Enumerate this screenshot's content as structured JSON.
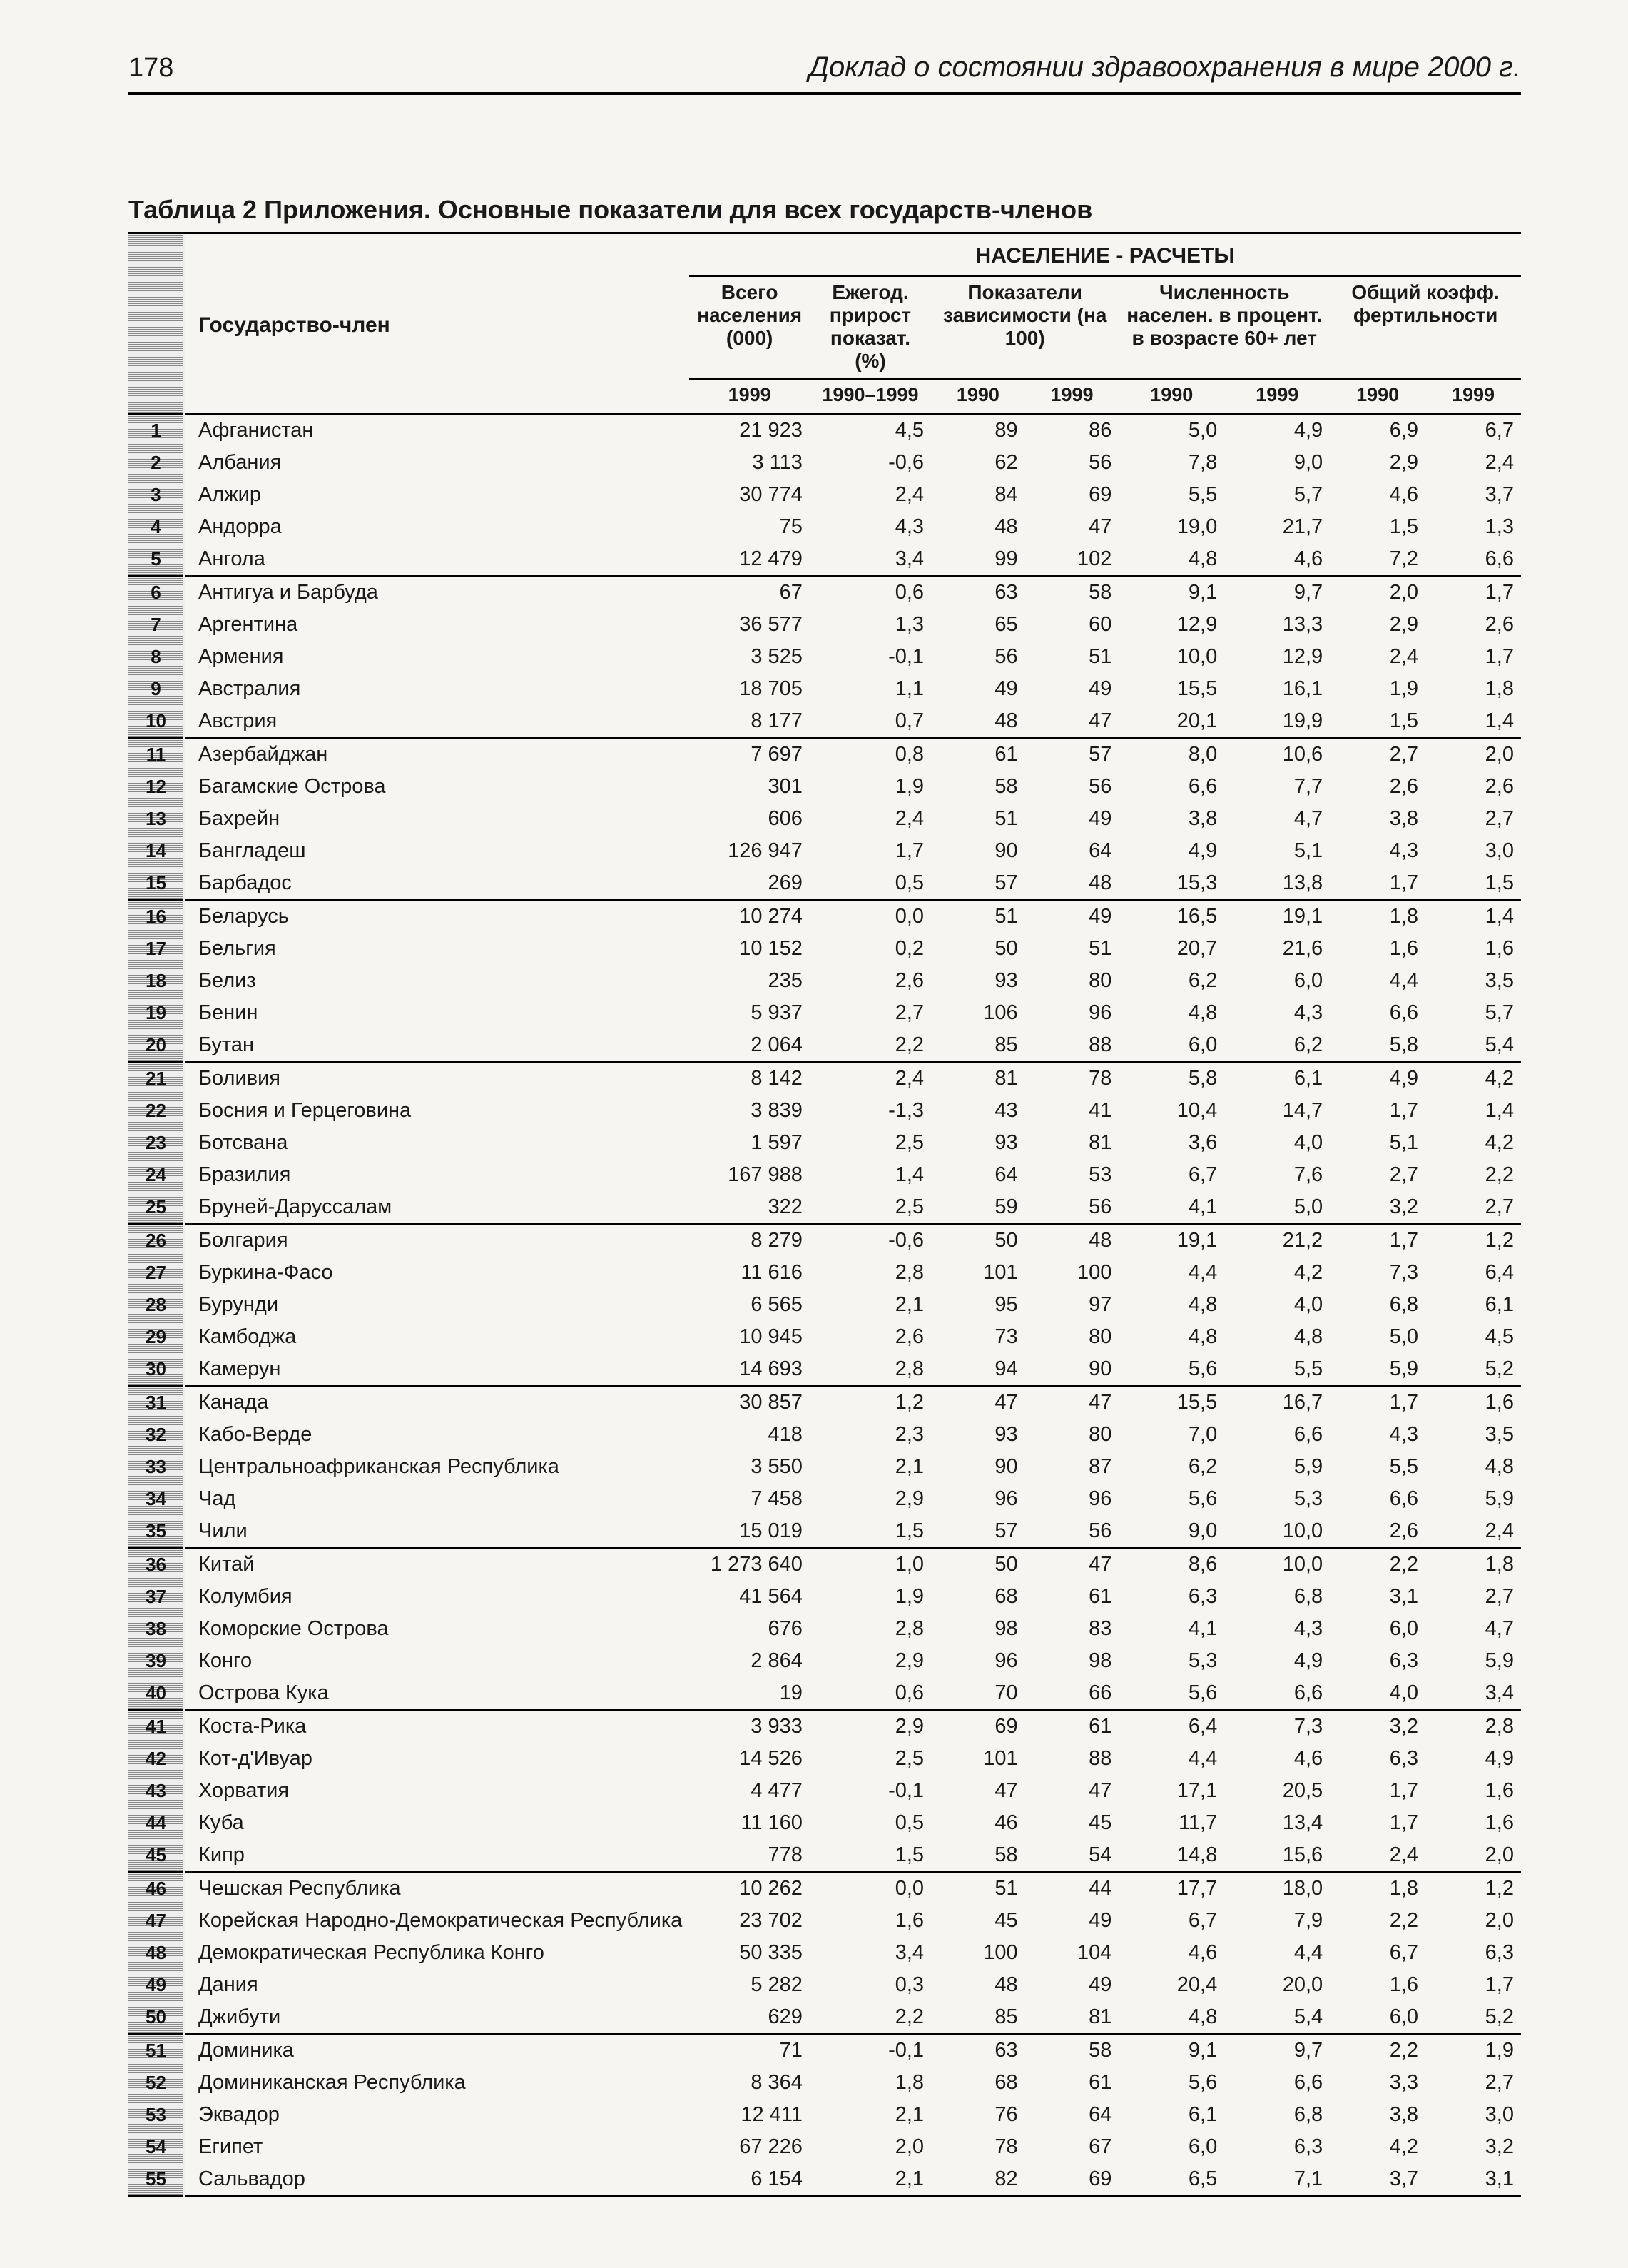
{
  "page_number": "178",
  "document_title": "Доклад о состоянии здравоохранения в мире 2000 г.",
  "table_title": "Таблица 2 Приложения.  Основные показатели для всех государств-членов",
  "colors": {
    "text": "#1a1a1a",
    "background": "#f7f5f1",
    "rule": "#000000",
    "rownum_stripe_dark": "#888888",
    "rownum_stripe_light": "#eeeeee"
  },
  "typography": {
    "base_family": "Helvetica Neue, Arial, sans-serif",
    "header_fontsize_pt": 30,
    "body_fontsize_pt": 29,
    "title_fontsize_pt": 36,
    "running_fontsize_pt": 40
  },
  "header": {
    "super": "НАСЕЛЕНИЕ - РАСЧЕТЫ",
    "state": "Государство-член",
    "pop_total": "Всего населения (000)",
    "growth": "Ежегод. прирост показат. (%)",
    "dep_ratio": "Показатели зависимости (на 100)",
    "pct60": "Численность населен. в процент. в возрасте 60+ лет",
    "tfr": "Общий коэфф. фертильности",
    "y_pop": "1999",
    "y_growth": "1990–1999",
    "y1990": "1990",
    "y1999": "1999"
  },
  "block_size": 5,
  "rows": [
    {
      "n": "1",
      "country": "Афганистан",
      "pop": "21 923",
      "grow": "4,5",
      "d90": "89",
      "d99": "86",
      "p60a": "5,0",
      "p60b": "4,9",
      "t90": "6,9",
      "t99": "6,7"
    },
    {
      "n": "2",
      "country": "Албания",
      "pop": "3 113",
      "grow": "-0,6",
      "d90": "62",
      "d99": "56",
      "p60a": "7,8",
      "p60b": "9,0",
      "t90": "2,9",
      "t99": "2,4"
    },
    {
      "n": "3",
      "country": "Алжир",
      "pop": "30 774",
      "grow": "2,4",
      "d90": "84",
      "d99": "69",
      "p60a": "5,5",
      "p60b": "5,7",
      "t90": "4,6",
      "t99": "3,7"
    },
    {
      "n": "4",
      "country": "Андорра",
      "pop": "75",
      "grow": "4,3",
      "d90": "48",
      "d99": "47",
      "p60a": "19,0",
      "p60b": "21,7",
      "t90": "1,5",
      "t99": "1,3"
    },
    {
      "n": "5",
      "country": "Ангола",
      "pop": "12 479",
      "grow": "3,4",
      "d90": "99",
      "d99": "102",
      "p60a": "4,8",
      "p60b": "4,6",
      "t90": "7,2",
      "t99": "6,6"
    },
    {
      "n": "6",
      "country": "Антигуа и Барбуда",
      "pop": "67",
      "grow": "0,6",
      "d90": "63",
      "d99": "58",
      "p60a": "9,1",
      "p60b": "9,7",
      "t90": "2,0",
      "t99": "1,7"
    },
    {
      "n": "7",
      "country": "Аргентина",
      "pop": "36 577",
      "grow": "1,3",
      "d90": "65",
      "d99": "60",
      "p60a": "12,9",
      "p60b": "13,3",
      "t90": "2,9",
      "t99": "2,6"
    },
    {
      "n": "8",
      "country": "Армения",
      "pop": "3 525",
      "grow": "-0,1",
      "d90": "56",
      "d99": "51",
      "p60a": "10,0",
      "p60b": "12,9",
      "t90": "2,4",
      "t99": "1,7"
    },
    {
      "n": "9",
      "country": "Австралия",
      "pop": "18 705",
      "grow": "1,1",
      "d90": "49",
      "d99": "49",
      "p60a": "15,5",
      "p60b": "16,1",
      "t90": "1,9",
      "t99": "1,8"
    },
    {
      "n": "10",
      "country": "Австрия",
      "pop": "8 177",
      "grow": "0,7",
      "d90": "48",
      "d99": "47",
      "p60a": "20,1",
      "p60b": "19,9",
      "t90": "1,5",
      "t99": "1,4"
    },
    {
      "n": "11",
      "country": "Азербайджан",
      "pop": "7 697",
      "grow": "0,8",
      "d90": "61",
      "d99": "57",
      "p60a": "8,0",
      "p60b": "10,6",
      "t90": "2,7",
      "t99": "2,0"
    },
    {
      "n": "12",
      "country": "Багамские Острова",
      "pop": "301",
      "grow": "1,9",
      "d90": "58",
      "d99": "56",
      "p60a": "6,6",
      "p60b": "7,7",
      "t90": "2,6",
      "t99": "2,6"
    },
    {
      "n": "13",
      "country": "Бахрейн",
      "pop": "606",
      "grow": "2,4",
      "d90": "51",
      "d99": "49",
      "p60a": "3,8",
      "p60b": "4,7",
      "t90": "3,8",
      "t99": "2,7"
    },
    {
      "n": "14",
      "country": "Бангладеш",
      "pop": "126 947",
      "grow": "1,7",
      "d90": "90",
      "d99": "64",
      "p60a": "4,9",
      "p60b": "5,1",
      "t90": "4,3",
      "t99": "3,0"
    },
    {
      "n": "15",
      "country": "Барбадос",
      "pop": "269",
      "grow": "0,5",
      "d90": "57",
      "d99": "48",
      "p60a": "15,3",
      "p60b": "13,8",
      "t90": "1,7",
      "t99": "1,5"
    },
    {
      "n": "16",
      "country": "Беларусь",
      "pop": "10 274",
      "grow": "0,0",
      "d90": "51",
      "d99": "49",
      "p60a": "16,5",
      "p60b": "19,1",
      "t90": "1,8",
      "t99": "1,4"
    },
    {
      "n": "17",
      "country": "Бельгия",
      "pop": "10 152",
      "grow": "0,2",
      "d90": "50",
      "d99": "51",
      "p60a": "20,7",
      "p60b": "21,6",
      "t90": "1,6",
      "t99": "1,6"
    },
    {
      "n": "18",
      "country": "Белиз",
      "pop": "235",
      "grow": "2,6",
      "d90": "93",
      "d99": "80",
      "p60a": "6,2",
      "p60b": "6,0",
      "t90": "4,4",
      "t99": "3,5"
    },
    {
      "n": "19",
      "country": "Бенин",
      "pop": "5 937",
      "grow": "2,7",
      "d90": "106",
      "d99": "96",
      "p60a": "4,8",
      "p60b": "4,3",
      "t90": "6,6",
      "t99": "5,7"
    },
    {
      "n": "20",
      "country": "Бутан",
      "pop": "2 064",
      "grow": "2,2",
      "d90": "85",
      "d99": "88",
      "p60a": "6,0",
      "p60b": "6,2",
      "t90": "5,8",
      "t99": "5,4"
    },
    {
      "n": "21",
      "country": "Боливия",
      "pop": "8 142",
      "grow": "2,4",
      "d90": "81",
      "d99": "78",
      "p60a": "5,8",
      "p60b": "6,1",
      "t90": "4,9",
      "t99": "4,2"
    },
    {
      "n": "22",
      "country": "Босния и Герцеговина",
      "pop": "3 839",
      "grow": "-1,3",
      "d90": "43",
      "d99": "41",
      "p60a": "10,4",
      "p60b": "14,7",
      "t90": "1,7",
      "t99": "1,4"
    },
    {
      "n": "23",
      "country": "Ботсвана",
      "pop": "1 597",
      "grow": "2,5",
      "d90": "93",
      "d99": "81",
      "p60a": "3,6",
      "p60b": "4,0",
      "t90": "5,1",
      "t99": "4,2"
    },
    {
      "n": "24",
      "country": "Бразилия",
      "pop": "167 988",
      "grow": "1,4",
      "d90": "64",
      "d99": "53",
      "p60a": "6,7",
      "p60b": "7,6",
      "t90": "2,7",
      "t99": "2,2"
    },
    {
      "n": "25",
      "country": "Бруней-Даруссалам",
      "pop": "322",
      "grow": "2,5",
      "d90": "59",
      "d99": "56",
      "p60a": "4,1",
      "p60b": "5,0",
      "t90": "3,2",
      "t99": "2,7"
    },
    {
      "n": "26",
      "country": "Болгария",
      "pop": "8 279",
      "grow": "-0,6",
      "d90": "50",
      "d99": "48",
      "p60a": "19,1",
      "p60b": "21,2",
      "t90": "1,7",
      "t99": "1,2"
    },
    {
      "n": "27",
      "country": "Буркина-Фасо",
      "pop": "11 616",
      "grow": "2,8",
      "d90": "101",
      "d99": "100",
      "p60a": "4,4",
      "p60b": "4,2",
      "t90": "7,3",
      "t99": "6,4"
    },
    {
      "n": "28",
      "country": "Бурунди",
      "pop": "6 565",
      "grow": "2,1",
      "d90": "95",
      "d99": "97",
      "p60a": "4,8",
      "p60b": "4,0",
      "t90": "6,8",
      "t99": "6,1"
    },
    {
      "n": "29",
      "country": "Камбоджа",
      "pop": "10 945",
      "grow": "2,6",
      "d90": "73",
      "d99": "80",
      "p60a": "4,8",
      "p60b": "4,8",
      "t90": "5,0",
      "t99": "4,5"
    },
    {
      "n": "30",
      "country": "Камерун",
      "pop": "14 693",
      "grow": "2,8",
      "d90": "94",
      "d99": "90",
      "p60a": "5,6",
      "p60b": "5,5",
      "t90": "5,9",
      "t99": "5,2"
    },
    {
      "n": "31",
      "country": "Канада",
      "pop": "30 857",
      "grow": "1,2",
      "d90": "47",
      "d99": "47",
      "p60a": "15,5",
      "p60b": "16,7",
      "t90": "1,7",
      "t99": "1,6"
    },
    {
      "n": "32",
      "country": "Кабо-Верде",
      "pop": "418",
      "grow": "2,3",
      "d90": "93",
      "d99": "80",
      "p60a": "7,0",
      "p60b": "6,6",
      "t90": "4,3",
      "t99": "3,5"
    },
    {
      "n": "33",
      "country": "Центральноафриканская Республика",
      "pop": "3 550",
      "grow": "2,1",
      "d90": "90",
      "d99": "87",
      "p60a": "6,2",
      "p60b": "5,9",
      "t90": "5,5",
      "t99": "4,8"
    },
    {
      "n": "34",
      "country": "Чад",
      "pop": "7 458",
      "grow": "2,9",
      "d90": "96",
      "d99": "96",
      "p60a": "5,6",
      "p60b": "5,3",
      "t90": "6,6",
      "t99": "5,9"
    },
    {
      "n": "35",
      "country": "Чили",
      "pop": "15 019",
      "grow": "1,5",
      "d90": "57",
      "d99": "56",
      "p60a": "9,0",
      "p60b": "10,0",
      "t90": "2,6",
      "t99": "2,4"
    },
    {
      "n": "36",
      "country": "Китай",
      "pop": "1 273 640",
      "grow": "1,0",
      "d90": "50",
      "d99": "47",
      "p60a": "8,6",
      "p60b": "10,0",
      "t90": "2,2",
      "t99": "1,8"
    },
    {
      "n": "37",
      "country": "Колумбия",
      "pop": "41 564",
      "grow": "1,9",
      "d90": "68",
      "d99": "61",
      "p60a": "6,3",
      "p60b": "6,8",
      "t90": "3,1",
      "t99": "2,7"
    },
    {
      "n": "38",
      "country": "Коморские Острова",
      "pop": "676",
      "grow": "2,8",
      "d90": "98",
      "d99": "83",
      "p60a": "4,1",
      "p60b": "4,3",
      "t90": "6,0",
      "t99": "4,7"
    },
    {
      "n": "39",
      "country": "Конго",
      "pop": "2 864",
      "grow": "2,9",
      "d90": "96",
      "d99": "98",
      "p60a": "5,3",
      "p60b": "4,9",
      "t90": "6,3",
      "t99": "5,9"
    },
    {
      "n": "40",
      "country": "Острова Кука",
      "pop": "19",
      "grow": "0,6",
      "d90": "70",
      "d99": "66",
      "p60a": "5,6",
      "p60b": "6,6",
      "t90": "4,0",
      "t99": "3,4"
    },
    {
      "n": "41",
      "country": "Коста-Рика",
      "pop": "3 933",
      "grow": "2,9",
      "d90": "69",
      "d99": "61",
      "p60a": "6,4",
      "p60b": "7,3",
      "t90": "3,2",
      "t99": "2,8"
    },
    {
      "n": "42",
      "country": "Кот-д'Ивуар",
      "pop": "14 526",
      "grow": "2,5",
      "d90": "101",
      "d99": "88",
      "p60a": "4,4",
      "p60b": "4,6",
      "t90": "6,3",
      "t99": "4,9"
    },
    {
      "n": "43",
      "country": "Хорватия",
      "pop": "4 477",
      "grow": "-0,1",
      "d90": "47",
      "d99": "47",
      "p60a": "17,1",
      "p60b": "20,5",
      "t90": "1,7",
      "t99": "1,6"
    },
    {
      "n": "44",
      "country": "Куба",
      "pop": "11 160",
      "grow": "0,5",
      "d90": "46",
      "d99": "45",
      "p60a": "11,7",
      "p60b": "13,4",
      "t90": "1,7",
      "t99": "1,6"
    },
    {
      "n": "45",
      "country": "Кипр",
      "pop": "778",
      "grow": "1,5",
      "d90": "58",
      "d99": "54",
      "p60a": "14,8",
      "p60b": "15,6",
      "t90": "2,4",
      "t99": "2,0"
    },
    {
      "n": "46",
      "country": "Чешская Республика",
      "pop": "10 262",
      "grow": "0,0",
      "d90": "51",
      "d99": "44",
      "p60a": "17,7",
      "p60b": "18,0",
      "t90": "1,8",
      "t99": "1,2"
    },
    {
      "n": "47",
      "country": "Корейская Народно-Демократическая Республика",
      "pop": "23 702",
      "grow": "1,6",
      "d90": "45",
      "d99": "49",
      "p60a": "6,7",
      "p60b": "7,9",
      "t90": "2,2",
      "t99": "2,0"
    },
    {
      "n": "48",
      "country": "Демократическая Республика Конго",
      "pop": "50 335",
      "grow": "3,4",
      "d90": "100",
      "d99": "104",
      "p60a": "4,6",
      "p60b": "4,4",
      "t90": "6,7",
      "t99": "6,3"
    },
    {
      "n": "49",
      "country": "Дания",
      "pop": "5 282",
      "grow": "0,3",
      "d90": "48",
      "d99": "49",
      "p60a": "20,4",
      "p60b": "20,0",
      "t90": "1,6",
      "t99": "1,7"
    },
    {
      "n": "50",
      "country": "Джибути",
      "pop": "629",
      "grow": "2,2",
      "d90": "85",
      "d99": "81",
      "p60a": "4,8",
      "p60b": "5,4",
      "t90": "6,0",
      "t99": "5,2"
    },
    {
      "n": "51",
      "country": "Доминика",
      "pop": "71",
      "grow": "-0,1",
      "d90": "63",
      "d99": "58",
      "p60a": "9,1",
      "p60b": "9,7",
      "t90": "2,2",
      "t99": "1,9"
    },
    {
      "n": "52",
      "country": "Доминиканская Республика",
      "pop": "8 364",
      "grow": "1,8",
      "d90": "68",
      "d99": "61",
      "p60a": "5,6",
      "p60b": "6,6",
      "t90": "3,3",
      "t99": "2,7"
    },
    {
      "n": "53",
      "country": "Эквадор",
      "pop": "12 411",
      "grow": "2,1",
      "d90": "76",
      "d99": "64",
      "p60a": "6,1",
      "p60b": "6,8",
      "t90": "3,8",
      "t99": "3,0"
    },
    {
      "n": "54",
      "country": "Египет",
      "pop": "67 226",
      "grow": "2,0",
      "d90": "78",
      "d99": "67",
      "p60a": "6,0",
      "p60b": "6,3",
      "t90": "4,2",
      "t99": "3,2"
    },
    {
      "n": "55",
      "country": "Сальвадор",
      "pop": "6 154",
      "grow": "2,1",
      "d90": "82",
      "d99": "69",
      "p60a": "6,5",
      "p60b": "7,1",
      "t90": "3,7",
      "t99": "3,1"
    }
  ]
}
